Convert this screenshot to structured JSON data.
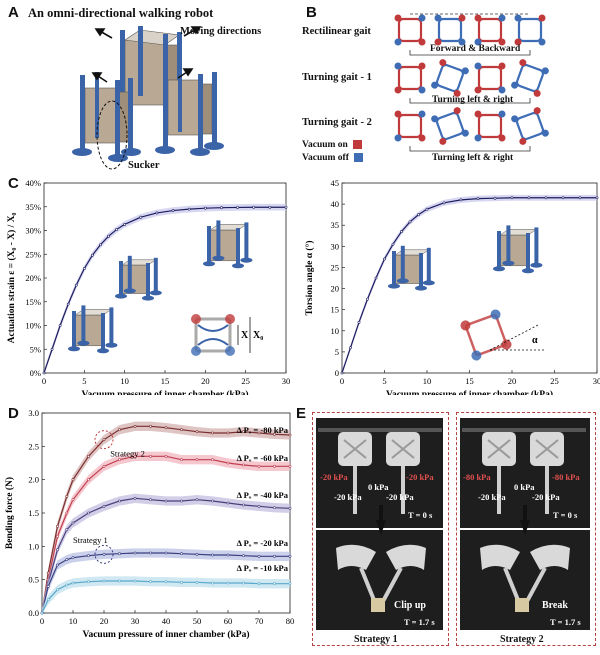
{
  "panelA": {
    "label": "A",
    "title": "An omni-directional walking robot",
    "moving": "Moving directions",
    "sucker": "Sucker"
  },
  "panelB": {
    "label": "B",
    "gaits": [
      {
        "name": "Rectilinear gait",
        "caption": "Forward & Backward"
      },
      {
        "name": "Turning gait - 1",
        "caption": "Turning left & right"
      },
      {
        "name": "Turning gait - 2",
        "caption": "Turning left & right"
      }
    ],
    "legend": [
      {
        "label": "Vacuum on",
        "color": "#c0393b"
      },
      {
        "label": "Vacuum off",
        "color": "#3e6db5"
      }
    ]
  },
  "panelC": {
    "label": "C",
    "diagram_labels": {
      "x": "X",
      "x0": "X₀",
      "alpha": "α"
    },
    "chart_data": [
      {
        "type": "line",
        "xlabel": "Vacuum pressure of inner chamber (kPa)",
        "ylabel": "Actuation strain ε = (X₀ - X) / X₀",
        "xlim": [
          0,
          30
        ],
        "ylim": [
          0,
          40
        ],
        "xticks": [
          "0",
          "5",
          "10",
          "15",
          "20",
          "25",
          "30"
        ],
        "yticks": [
          "0%",
          "5%",
          "10%",
          "15%",
          "20%",
          "25%",
          "30%",
          "35%",
          "40%"
        ],
        "x": [
          0,
          1,
          2,
          3,
          4,
          5,
          6,
          7,
          8,
          9,
          10,
          12,
          14,
          16,
          18,
          20,
          22,
          24,
          26,
          28,
          30
        ],
        "y": [
          0,
          5,
          10,
          14.5,
          18.5,
          22,
          24.8,
          27,
          28.8,
          30.2,
          31.3,
          32.8,
          33.7,
          34.2,
          34.5,
          34.7,
          34.8,
          34.85,
          34.9,
          34.9,
          34.9
        ]
      },
      {
        "type": "line",
        "xlabel": "Vacuum pressure of inner chamber (kPa)",
        "ylabel": "Torsion angle α (°)",
        "xlim": [
          0,
          30
        ],
        "ylim": [
          0,
          45
        ],
        "xticks": [
          "0",
          "5",
          "10",
          "15",
          "20",
          "25",
          "30"
        ],
        "yticks": [
          "0",
          "5",
          "10",
          "15",
          "20",
          "25",
          "30",
          "35",
          "40",
          "45"
        ],
        "x": [
          0,
          1,
          2,
          3,
          4,
          5,
          6,
          7,
          8,
          9,
          10,
          12,
          14,
          16,
          18,
          20,
          22,
          24,
          26,
          28,
          30
        ],
        "y": [
          0,
          6,
          12,
          17.5,
          22.5,
          27,
          30.5,
          33.5,
          35.8,
          37.5,
          38.8,
          40.3,
          41,
          41.3,
          41.4,
          41.5,
          41.5,
          41.5,
          41.5,
          41.5,
          41.5
        ]
      }
    ]
  },
  "panelD": {
    "label": "D",
    "annotations": [
      "Strategy 2",
      "Strategy 1"
    ],
    "chart_data": {
      "type": "line",
      "xlabel": "Vacuum pressure of inner chamber (kPa)",
      "ylabel": "Bending force (N)",
      "xlim": [
        0,
        80
      ],
      "ylim": [
        0,
        3.0
      ],
      "xticks": [
        "0",
        "10",
        "20",
        "30",
        "40",
        "50",
        "60",
        "70",
        "80"
      ],
      "yticks": [
        "0.0",
        "0.5",
        "1.0",
        "1.5",
        "2.0",
        "2.5",
        "3.0"
      ],
      "x": [
        0,
        2,
        5,
        8,
        10,
        15,
        20,
        25,
        30,
        35,
        40,
        45,
        50,
        55,
        60,
        65,
        70,
        75,
        80
      ],
      "series": [
        {
          "name": "Δ Pₒ = -80 kPa",
          "color": "#7a2e2e",
          "band": "#d4b0b0",
          "values": [
            0,
            0.6,
            1.3,
            1.75,
            2.0,
            2.35,
            2.6,
            2.75,
            2.8,
            2.8,
            2.78,
            2.75,
            2.72,
            2.7,
            2.7,
            2.72,
            2.7,
            2.68,
            2.67
          ]
        },
        {
          "name": "Δ Pₒ = -60 kPa",
          "color": "#c04050",
          "band": "#f2b6bf",
          "values": [
            0,
            0.5,
            1.15,
            1.5,
            1.7,
            2.0,
            2.2,
            2.3,
            2.35,
            2.35,
            2.35,
            2.3,
            2.3,
            2.3,
            2.25,
            2.22,
            2.2,
            2.2,
            2.2
          ]
        },
        {
          "name": "Δ Pₒ = -40 kPa",
          "color": "#4a3f7a",
          "band": "#c3bde0",
          "values": [
            0,
            0.45,
            0.95,
            1.25,
            1.35,
            1.5,
            1.6,
            1.68,
            1.72,
            1.7,
            1.68,
            1.68,
            1.7,
            1.68,
            1.65,
            1.62,
            1.6,
            1.58,
            1.57
          ]
        },
        {
          "name": "Δ Pₒ = -20 kPa",
          "color": "#3a3f80",
          "band": "#b9c0e4",
          "values": [
            0,
            0.4,
            0.72,
            0.8,
            0.83,
            0.86,
            0.88,
            0.89,
            0.9,
            0.9,
            0.9,
            0.89,
            0.88,
            0.87,
            0.87,
            0.86,
            0.85,
            0.85,
            0.85
          ]
        },
        {
          "name": "Δ Pₒ = -10 kPa",
          "color": "#5aa8cc",
          "band": "#bfe0ee",
          "values": [
            0,
            0.2,
            0.35,
            0.42,
            0.45,
            0.47,
            0.48,
            0.48,
            0.48,
            0.47,
            0.47,
            0.46,
            0.46,
            0.45,
            0.45,
            0.45,
            0.44,
            0.44,
            0.44
          ]
        }
      ]
    }
  },
  "panelE": {
    "label": "E",
    "strategies": [
      {
        "caption": "Strategy 1",
        "left": "-20 kPa",
        "right": "-20 kPa",
        "center": "0 kPa",
        "lower_left": "-20 kPa",
        "lower_right": "-20 kPa",
        "t0": "T = 0 s",
        "t1": "T = 1.7 s",
        "action": "Clip up"
      },
      {
        "caption": "Strategy 2",
        "left": "-80 kPa",
        "right": "-80 kPa",
        "center": "0 kPa",
        "lower_left": "-20 kPa",
        "lower_right": "-20 kPa",
        "t0": "T = 0 s",
        "t1": "T = 1.7 s",
        "action": "Break"
      }
    ]
  }
}
